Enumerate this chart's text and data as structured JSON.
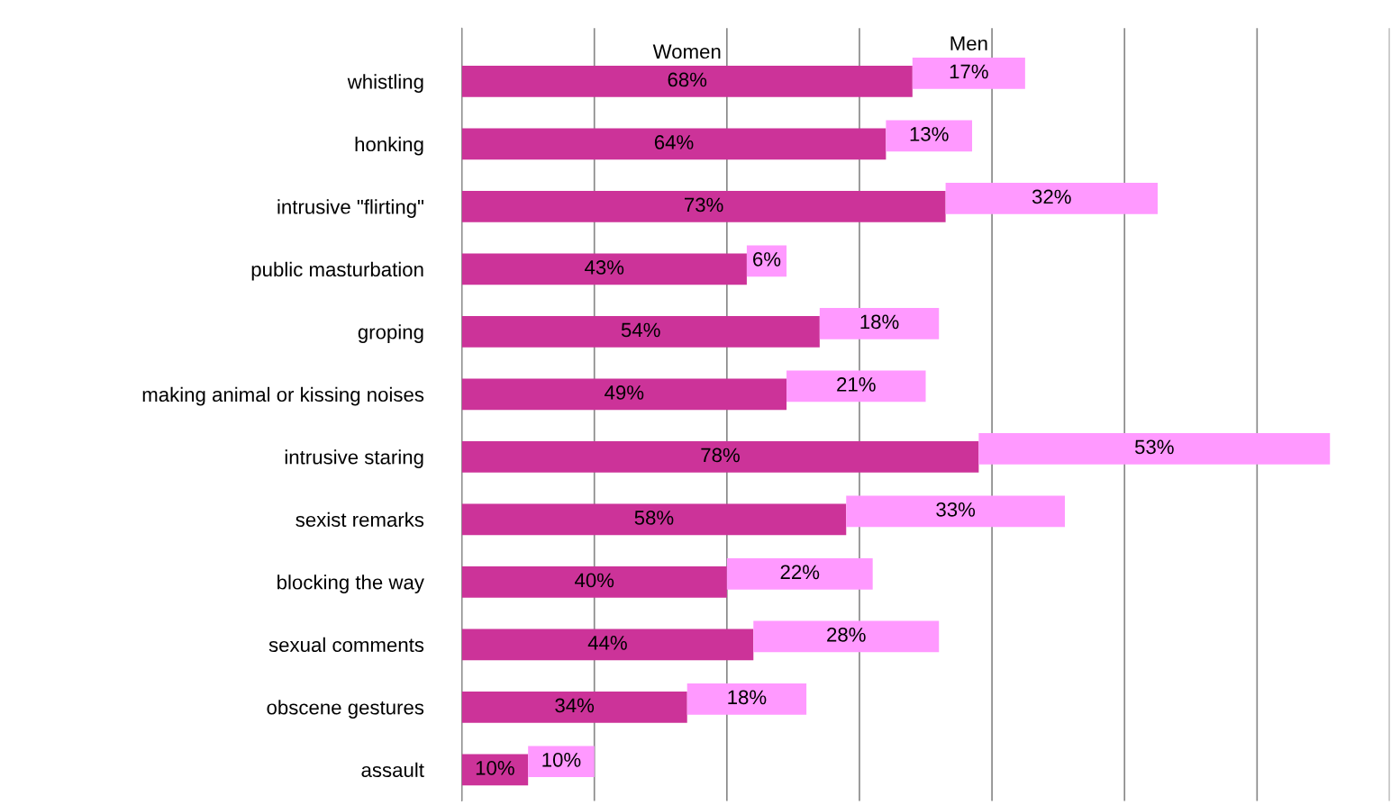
{
  "chart_data": {
    "type": "bar",
    "orientation": "horizontal",
    "stacked": true,
    "categories": [
      "whistling",
      "honking",
      "intrusive \"flirting\"",
      "public masturbation",
      "groping",
      "making animal or kissing noises",
      "intrusive staring",
      "sexist remarks",
      "blocking the way",
      "sexual comments",
      "obscene gestures",
      "assault"
    ],
    "series": [
      {
        "name": "Women",
        "color": "#cc3399",
        "values": [
          68,
          64,
          73,
          43,
          54,
          49,
          78,
          58,
          40,
          44,
          34,
          10
        ],
        "value_labels": [
          "68%",
          "64%",
          "73%",
          "43%",
          "54%",
          "49%",
          "78%",
          "58%",
          "40%",
          "44%",
          "34%",
          "10%"
        ]
      },
      {
        "name": "Men",
        "color": "#ff99ff",
        "values": [
          17,
          13,
          32,
          6,
          18,
          21,
          53,
          33,
          22,
          28,
          18,
          10
        ],
        "value_labels": [
          "17%",
          "13%",
          "32%",
          "6%",
          "18%",
          "21%",
          "53%",
          "33%",
          "22%",
          "28%",
          "18%",
          "10%"
        ]
      }
    ],
    "xlim": [
      0,
      140
    ],
    "xticks": [
      {
        "value": 0,
        "label": null
      },
      {
        "value": 20,
        "label": null
      },
      {
        "value": 40,
        "label": null
      },
      {
        "value": 60,
        "label": null
      },
      {
        "value": 80,
        "label": null
      },
      {
        "value": 100,
        "label": null
      },
      {
        "value": 120,
        "label": null
      },
      {
        "value": 140,
        "label": null
      }
    ],
    "tick_labels": "y",
    "grid": "x",
    "legend": false
  }
}
